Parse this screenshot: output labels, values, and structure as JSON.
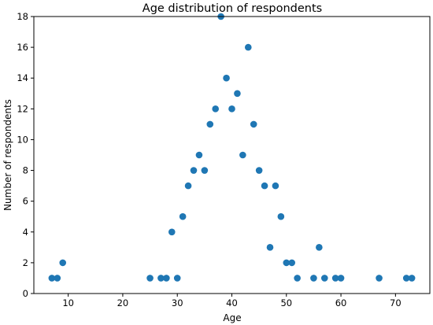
{
  "chart_data": {
    "type": "scatter",
    "title": "Age distribution of respondents",
    "xlabel": "Age",
    "ylabel": "Number of respondents",
    "xlim": [
      3.7,
      76.3
    ],
    "ylim": [
      0,
      18
    ],
    "xticks": [
      10,
      20,
      30,
      40,
      50,
      60,
      70
    ],
    "yticks": [
      0,
      2,
      4,
      6,
      8,
      10,
      12,
      14,
      16,
      18
    ],
    "grid": false,
    "marker_color": "#1f77b4",
    "points": [
      {
        "x": 7,
        "y": 1
      },
      {
        "x": 8,
        "y": 1
      },
      {
        "x": 9,
        "y": 2
      },
      {
        "x": 25,
        "y": 1
      },
      {
        "x": 27,
        "y": 1
      },
      {
        "x": 28,
        "y": 1
      },
      {
        "x": 29,
        "y": 4
      },
      {
        "x": 30,
        "y": 1
      },
      {
        "x": 31,
        "y": 5
      },
      {
        "x": 32,
        "y": 7
      },
      {
        "x": 33,
        "y": 8
      },
      {
        "x": 34,
        "y": 9
      },
      {
        "x": 35,
        "y": 8
      },
      {
        "x": 36,
        "y": 11
      },
      {
        "x": 37,
        "y": 12
      },
      {
        "x": 38,
        "y": 18
      },
      {
        "x": 39,
        "y": 14
      },
      {
        "x": 40,
        "y": 12
      },
      {
        "x": 41,
        "y": 13
      },
      {
        "x": 42,
        "y": 9
      },
      {
        "x": 43,
        "y": 16
      },
      {
        "x": 44,
        "y": 11
      },
      {
        "x": 45,
        "y": 8
      },
      {
        "x": 46,
        "y": 7
      },
      {
        "x": 47,
        "y": 3
      },
      {
        "x": 48,
        "y": 7
      },
      {
        "x": 49,
        "y": 5
      },
      {
        "x": 50,
        "y": 2
      },
      {
        "x": 51,
        "y": 2
      },
      {
        "x": 52,
        "y": 1
      },
      {
        "x": 55,
        "y": 1
      },
      {
        "x": 56,
        "y": 3
      },
      {
        "x": 57,
        "y": 1
      },
      {
        "x": 59,
        "y": 1
      },
      {
        "x": 60,
        "y": 1
      },
      {
        "x": 67,
        "y": 1
      },
      {
        "x": 72,
        "y": 1
      },
      {
        "x": 73,
        "y": 1
      }
    ]
  }
}
